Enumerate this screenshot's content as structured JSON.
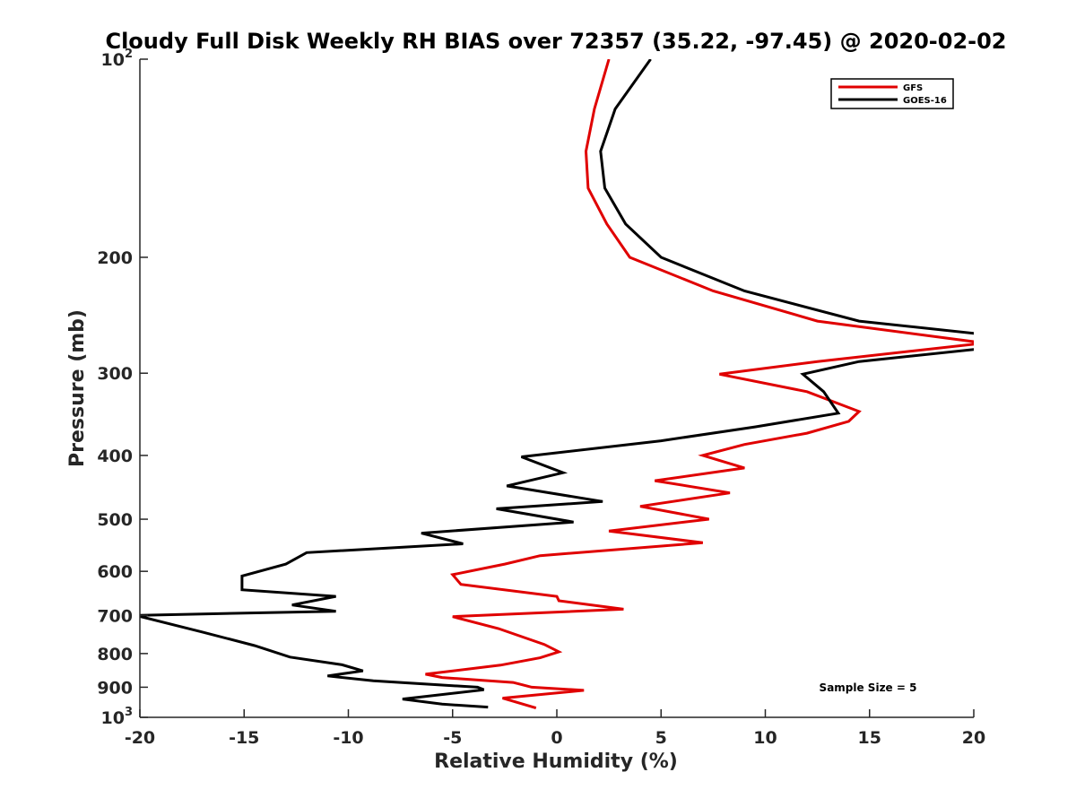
{
  "chart_data": {
    "type": "line",
    "title": "Cloudy Full Disk Weekly RH BIAS over 72357 (35.22, -97.45) @ 2020-02-02",
    "xlabel": "Relative Humidity (%)",
    "ylabel": "Pressure (mb)",
    "xlim": [
      -20,
      20
    ],
    "ylim": [
      100,
      1000
    ],
    "y_scale": "log",
    "y_reversed": true,
    "grid": false,
    "legend_position": "top-right",
    "x_ticks": [
      -20,
      -15,
      -10,
      -5,
      0,
      5,
      10,
      15,
      20
    ],
    "x_tick_labels": [
      "-20",
      "-15",
      "-10",
      "-5",
      "0",
      "5",
      "10",
      "15",
      "20"
    ],
    "y_ticks": [
      {
        "value": 100,
        "base": "10",
        "exp": "2"
      },
      {
        "value": 200,
        "base": "200",
        "exp": ""
      },
      {
        "value": 300,
        "base": "300",
        "exp": ""
      },
      {
        "value": 400,
        "base": "400",
        "exp": ""
      },
      {
        "value": 500,
        "base": "500",
        "exp": ""
      },
      {
        "value": 600,
        "base": "600",
        "exp": ""
      },
      {
        "value": 700,
        "base": "700",
        "exp": ""
      },
      {
        "value": 800,
        "base": "800",
        "exp": ""
      },
      {
        "value": 900,
        "base": "900",
        "exp": ""
      },
      {
        "value": 1000,
        "base": "10",
        "exp": "3"
      }
    ],
    "annotation": "Sample Size = 5",
    "series": [
      {
        "name": "GFS",
        "color": "#e00000",
        "points": [
          [
            2.5,
            100
          ],
          [
            1.8,
            119
          ],
          [
            1.4,
            138
          ],
          [
            1.5,
            157
          ],
          [
            2.4,
            178
          ],
          [
            3.5,
            200
          ],
          [
            7.5,
            225
          ],
          [
            12.5,
            250
          ],
          [
            20.5,
            270
          ],
          [
            12.5,
            288
          ],
          [
            7.8,
            301
          ],
          [
            12,
            320
          ],
          [
            14.5,
            343
          ],
          [
            14,
            355
          ],
          [
            12,
            370
          ],
          [
            9,
            385
          ],
          [
            7,
            400
          ],
          [
            9,
            418
          ],
          [
            4.7,
            437
          ],
          [
            8.3,
            456
          ],
          [
            4,
            478
          ],
          [
            7.3,
            500
          ],
          [
            2.5,
            521
          ],
          [
            7,
            543
          ],
          [
            -0.8,
            568
          ],
          [
            -2.5,
            585
          ],
          [
            -5,
            607
          ],
          [
            -4.6,
            628
          ],
          [
            0,
            655
          ],
          [
            0.1,
            665
          ],
          [
            3.2,
            685
          ],
          [
            -5,
            703
          ],
          [
            -2.8,
            733
          ],
          [
            -0.6,
            775
          ],
          [
            0.1,
            795
          ],
          [
            -0.8,
            812
          ],
          [
            -2.7,
            833
          ],
          [
            -6.3,
            860
          ],
          [
            -5.5,
            870
          ],
          [
            -2.1,
            885
          ],
          [
            -1.2,
            900
          ],
          [
            1.3,
            910
          ],
          [
            -2.6,
            935
          ],
          [
            -1,
            968
          ]
        ]
      },
      {
        "name": "GOES-16",
        "color": "#000000",
        "points": [
          [
            4.5,
            100
          ],
          [
            2.8,
            119
          ],
          [
            2.1,
            138
          ],
          [
            2.3,
            157
          ],
          [
            3.3,
            178
          ],
          [
            5,
            200
          ],
          [
            9,
            225
          ],
          [
            14.5,
            250
          ],
          [
            20.5,
            262
          ],
          [
            20.5,
            275
          ],
          [
            14.5,
            288
          ],
          [
            11.8,
            301
          ],
          [
            12.8,
            320
          ],
          [
            13.5,
            345
          ],
          [
            9.5,
            362
          ],
          [
            5,
            380
          ],
          [
            -1.7,
            402
          ],
          [
            0.3,
            425
          ],
          [
            -2.4,
            445
          ],
          [
            2.2,
            470
          ],
          [
            -2.9,
            482
          ],
          [
            0.8,
            505
          ],
          [
            -6.5,
            525
          ],
          [
            -4.5,
            545
          ],
          [
            -12,
            562
          ],
          [
            -13,
            585
          ],
          [
            -15.1,
            610
          ],
          [
            -15.1,
            640
          ],
          [
            -10.6,
            655
          ],
          [
            -12.7,
            675
          ],
          [
            -10.6,
            690
          ],
          [
            -20.2,
            700
          ],
          [
            -17,
            742
          ],
          [
            -14.5,
            778
          ],
          [
            -12.8,
            810
          ],
          [
            -10.3,
            832
          ],
          [
            -9.3,
            850
          ],
          [
            -11,
            865
          ],
          [
            -8.8,
            880
          ],
          [
            -3.8,
            900
          ],
          [
            -3.5,
            908
          ],
          [
            -7.4,
            938
          ],
          [
            -5.5,
            955
          ],
          [
            -3.3,
            965
          ]
        ]
      }
    ]
  }
}
